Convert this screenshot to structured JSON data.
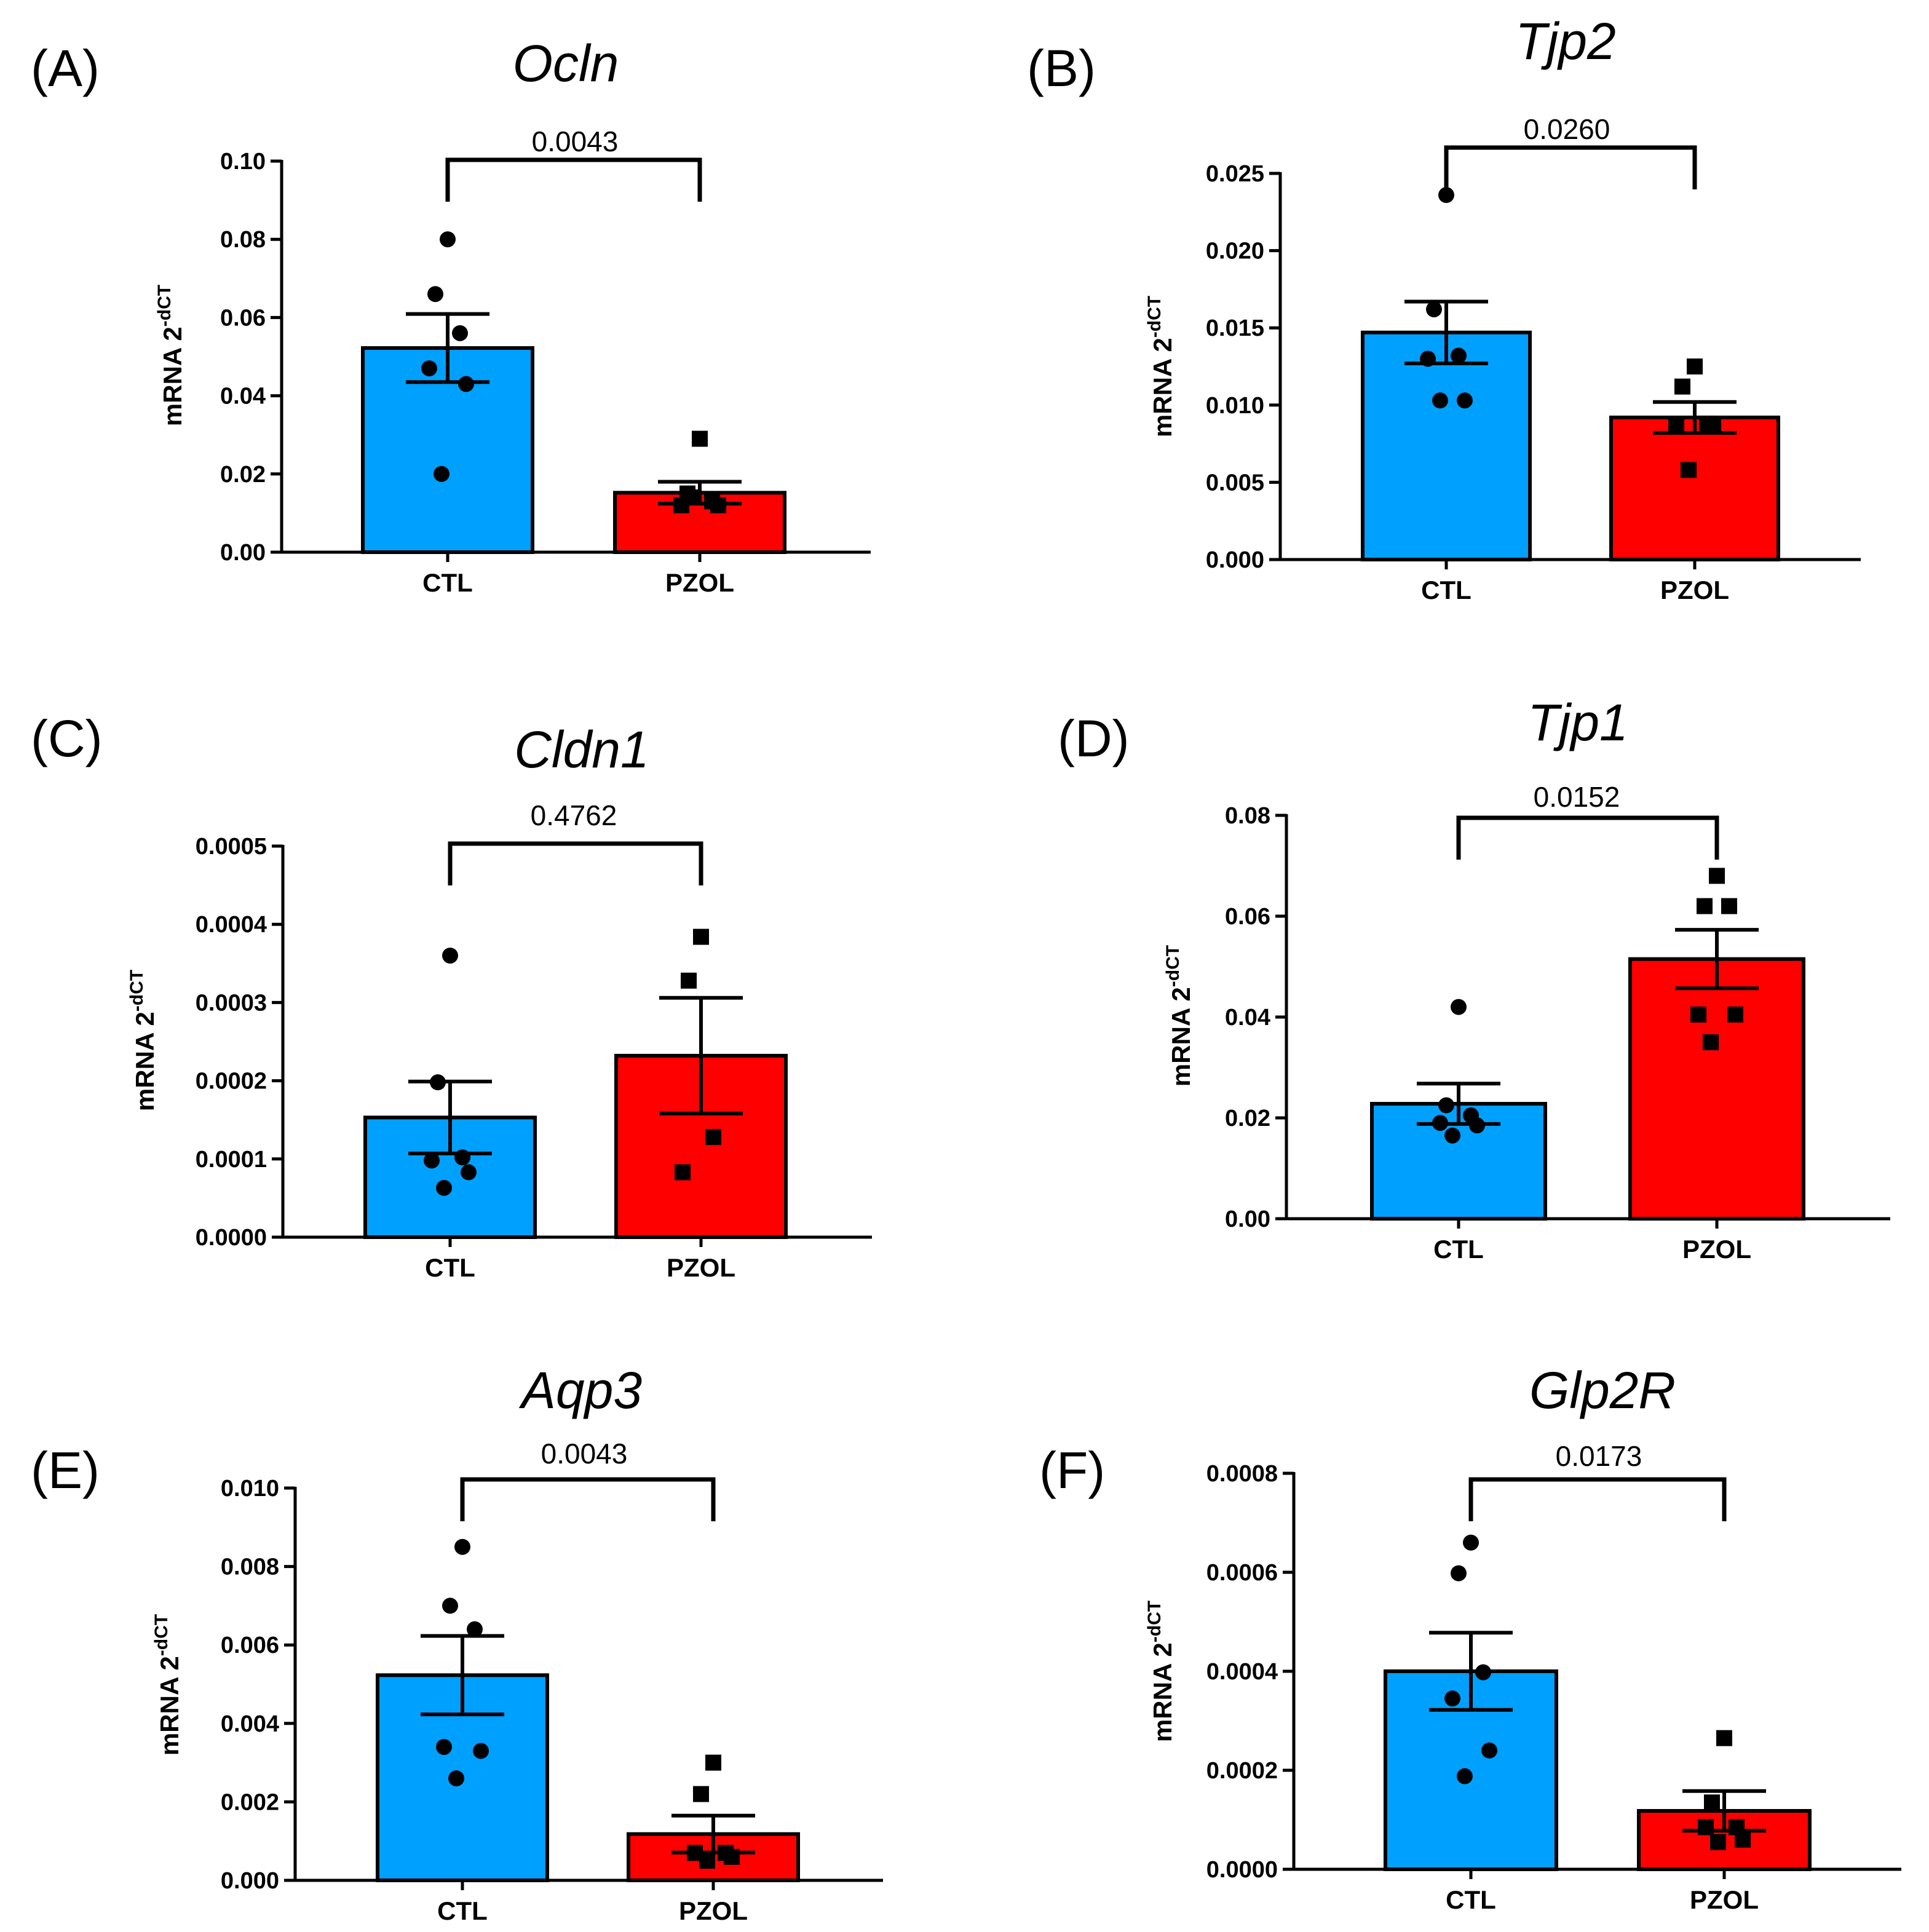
{
  "colors": {
    "CTL": "#00a0ff",
    "PZOL": "#ff0000",
    "ink": "#000000"
  },
  "chart_data": [
    {
      "panel": "(A)",
      "type": "bar",
      "title": "Ocln",
      "ylabel_main": "mRNA 2",
      "ylabel_sup": "-dCT",
      "categories": [
        "CTL",
        "PZOL"
      ],
      "ylim": [
        0,
        0.1
      ],
      "yticks": [
        "0.00",
        "0.02",
        "0.04",
        "0.06",
        "0.08",
        "0.10"
      ],
      "means": [
        0.0522,
        0.0152
      ],
      "sem": [
        0.0087,
        0.0028
      ],
      "points": [
        [
          0.08,
          0.066,
          0.056,
          0.047,
          0.043,
          0.02
        ],
        [
          0.029,
          0.015,
          0.013,
          0.012,
          0.012,
          0.014
        ]
      ],
      "pvalue": "0.0043"
    },
    {
      "panel": "(B)",
      "type": "bar",
      "title": "Tjp2",
      "ylabel_main": "mRNA 2",
      "ylabel_sup": "-dCT",
      "categories": [
        "CTL",
        "PZOL"
      ],
      "ylim": [
        0,
        0.025
      ],
      "yticks": [
        "0.000",
        "0.005",
        "0.010",
        "0.015",
        "0.020",
        "0.025"
      ],
      "means": [
        0.0147,
        0.0092
      ],
      "sem": [
        0.002,
        0.001
      ],
      "points": [
        [
          0.0236,
          0.0162,
          0.0132,
          0.013,
          0.0103,
          0.0103
        ],
        [
          0.0125,
          0.0112,
          0.0088,
          0.0087,
          0.0087,
          0.0058
        ]
      ],
      "pvalue": "0.0260"
    },
    {
      "panel": "(C)",
      "type": "bar",
      "title": "Cldn1",
      "ylabel_main": "mRNA 2",
      "ylabel_sup": "-dCT",
      "categories": [
        "CTL",
        "PZOL"
      ],
      "ylim": [
        0,
        0.0005
      ],
      "yticks": [
        "0.0000",
        "0.0001",
        "0.0002",
        "0.0003",
        "0.0004",
        "0.0005"
      ],
      "means": [
        0.000153,
        0.000232
      ],
      "sem": [
        4.6e-05,
        7.4e-05
      ],
      "points": [
        [
          0.00036,
          0.000198,
          0.000102,
          9.8e-05,
          8.3e-05,
          6.3e-05
        ],
        [
          0.000384,
          0.000328,
          0.000128,
          8.3e-05
        ]
      ],
      "pvalue": "0.4762"
    },
    {
      "panel": "(D)",
      "type": "bar",
      "title": "Tjp1",
      "ylabel_main": "mRNA 2",
      "ylabel_sup": "-dCT",
      "categories": [
        "CTL",
        "PZOL"
      ],
      "ylim": [
        0,
        0.08
      ],
      "yticks": [
        "0.00",
        "0.02",
        "0.04",
        "0.06",
        "0.08"
      ],
      "means": [
        0.0228,
        0.0515
      ],
      "sem": [
        0.004,
        0.0058
      ],
      "points": [
        [
          0.042,
          0.0225,
          0.0205,
          0.019,
          0.0185,
          0.0165
        ],
        [
          0.068,
          0.062,
          0.062,
          0.0405,
          0.0405,
          0.035
        ]
      ],
      "pvalue": "0.0152"
    },
    {
      "panel": "(E)",
      "type": "bar",
      "title": "Aqp3",
      "ylabel_main": "mRNA 2",
      "ylabel_sup": "-dCT",
      "categories": [
        "CTL",
        "PZOL"
      ],
      "ylim": [
        0,
        0.01
      ],
      "yticks": [
        "0.000",
        "0.002",
        "0.004",
        "0.006",
        "0.008",
        "0.010"
      ],
      "means": [
        0.00523,
        0.00118
      ],
      "sem": [
        0.001,
        0.00047
      ],
      "points": [
        [
          0.0085,
          0.007,
          0.0064,
          0.0034,
          0.0033,
          0.0026
        ],
        [
          0.003,
          0.0022,
          0.0007,
          0.0007,
          0.0006,
          0.0005
        ]
      ],
      "pvalue": "0.0043"
    },
    {
      "panel": "(F)",
      "type": "bar",
      "title": "Glp2R",
      "ylabel_main": "mRNA 2",
      "ylabel_sup": "-dCT",
      "categories": [
        "CTL",
        "PZOL"
      ],
      "ylim": [
        0,
        0.0008
      ],
      "yticks": [
        "0.0000",
        "0.0002",
        "0.0004",
        "0.0006",
        "0.0008"
      ],
      "means": [
        0.0004,
        0.000118
      ],
      "sem": [
        7.8e-05,
        4e-05
      ],
      "points": [
        [
          0.00066,
          0.000598,
          0.000398,
          0.000345,
          0.00024,
          0.000188
        ],
        [
          0.000265,
          0.000135,
          8.5e-05,
          8.5e-05,
          6e-05,
          5.5e-05
        ]
      ],
      "pvalue": "0.0173"
    }
  ]
}
